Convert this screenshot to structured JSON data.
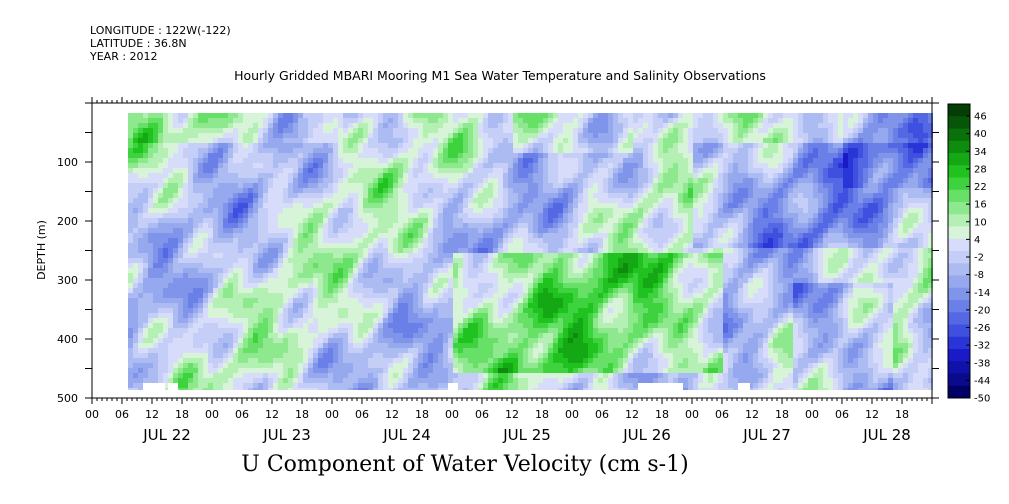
{
  "header": {
    "longitude": "LONGITUDE : 122W(-122)",
    "latitude": "LATITUDE : 36.8N",
    "year": "YEAR : 2012",
    "title": "Hourly Gridded MBARI Mooring M1 Sea Water Temperature and Salinity Observations"
  },
  "bottom_title": "U Component of Water Velocity (cm s-1)",
  "chart_data": {
    "type": "heatmap",
    "title": "Hourly Gridded MBARI Mooring M1 Sea Water Temperature and Salinity Observations",
    "variable": "U Component of Water Velocity (cm s-1)",
    "ylabel": "DEPTH (m)",
    "ylim": [
      500,
      0
    ],
    "yticks": [
      100,
      200,
      300,
      400,
      500
    ],
    "x_hour_ticks": [
      "00",
      "06",
      "12",
      "18",
      "00",
      "06",
      "12",
      "18",
      "00",
      "06",
      "12",
      "18",
      "00",
      "06",
      "12",
      "18",
      "00",
      "06",
      "12",
      "18",
      "00",
      "06",
      "12",
      "18",
      "00",
      "06",
      "12",
      "18"
    ],
    "x_day_labels": [
      "JUL 22",
      "JUL 23",
      "JUL 24",
      "JUL 25",
      "JUL 26",
      "JUL 27",
      "JUL 28"
    ],
    "time_range": [
      "2012-07-22T00:00",
      "2012-07-28T24:00"
    ],
    "data_time_range": [
      "2012-07-22T06:00",
      "2012-07-28T22:00"
    ],
    "data_depth_range": [
      20,
      485
    ],
    "colorbar": {
      "labels": [
        "46",
        "40",
        "34",
        "28",
        "22",
        "16",
        "10",
        "4",
        "-2",
        "-8",
        "-14",
        "-20",
        "-26",
        "-32",
        "-38",
        "-44",
        "-50"
      ],
      "range": [
        -50,
        50
      ],
      "colors": [
        "#000066",
        "#0a0a8c",
        "#1010aa",
        "#1a1ac8",
        "#2a35d8",
        "#3f50e0",
        "#5468e4",
        "#6a80e8",
        "#8094ea",
        "#96a8ee",
        "#acbcf2",
        "#c4cef6",
        "#d6dcf9",
        "#d8f4d8",
        "#b4f0b4",
        "#8ee88e",
        "#66e066",
        "#3ed23e",
        "#1fc21f",
        "#14a814",
        "#0e8c0e",
        "#0a700a",
        "#075507",
        "#053e05"
      ]
    },
    "field_description": "Alternating bands of positive (green) and negative (blue) eastward velocity; deep layer (250-450 m) strongly positive on Jul 25-26; upper layer mostly negative Jul 27-28"
  }
}
